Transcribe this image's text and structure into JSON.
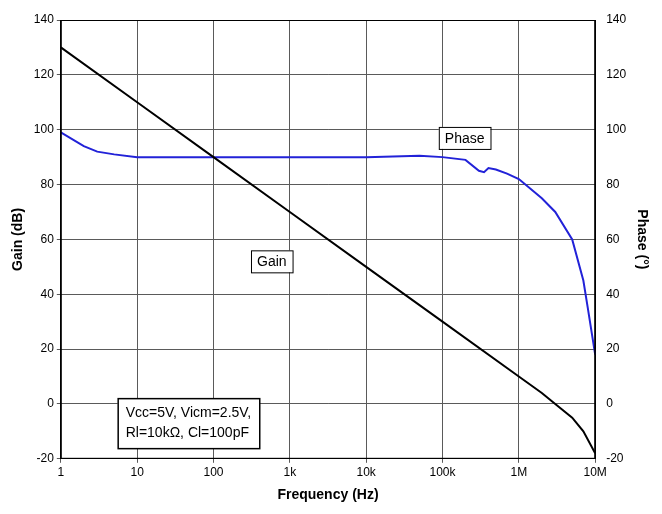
{
  "chart_data": {
    "type": "line",
    "log": "x",
    "grid": true,
    "x_label": "Frequency (Hz)",
    "y_label": "Gain (dB)",
    "y2_label": "Phase (°)",
    "xlim": [
      1,
      10000000
    ],
    "xticks": [
      1,
      10,
      100,
      {
        "value": 1000,
        "label": "1k"
      },
      {
        "value": 10000,
        "label": "10k"
      },
      {
        "value": 100000,
        "label": "100k"
      },
      {
        "value": 1000000,
        "label": "1M"
      },
      {
        "value": 10000000,
        "label": "10M"
      }
    ],
    "ylim": [
      -20,
      140
    ],
    "yticks": [
      -20,
      0,
      20,
      40,
      60,
      80,
      100,
      120,
      140
    ],
    "y2lim": [
      -20,
      140
    ],
    "y2ticks": [
      -20,
      0,
      20,
      40,
      60,
      80,
      100,
      120,
      140
    ],
    "series": [
      {
        "name": "Gain",
        "color": "#000000",
        "label": {
          "x": 580,
          "y": 52
        },
        "x": [
          1,
          10,
          100,
          1000,
          10000,
          100000,
          1000000,
          2000000,
          3000000,
          5000000,
          7000000,
          10000000
        ],
        "values": [
          130,
          110,
          90,
          70,
          50,
          30,
          10,
          4,
          0,
          -5,
          -10,
          -18
        ]
      },
      {
        "name": "Phase",
        "color": "#2222d8",
        "axis": "y2",
        "label": {
          "x": 195000,
          "y": 97
        },
        "x": [
          1,
          2,
          3,
          5,
          10,
          100,
          1000,
          10000,
          50000,
          100000,
          200000,
          300000,
          350000,
          400000,
          500000,
          700000,
          1000000,
          2000000,
          3000000,
          5000000,
          7000000,
          8000000,
          10000000
        ],
        "values": [
          99,
          94,
          92,
          91,
          90,
          90,
          90,
          90,
          90.5,
          90,
          89,
          85,
          84.5,
          86,
          85.5,
          84,
          82,
          75,
          70,
          60,
          45,
          35,
          18
        ]
      }
    ],
    "annotations": [
      {
        "lines": [
          "Vcc=5V, Vicm=2.5V,",
          "Rl=10kΩ, Cl=100pF"
        ],
        "x": 47,
        "y": -7
      }
    ]
  }
}
